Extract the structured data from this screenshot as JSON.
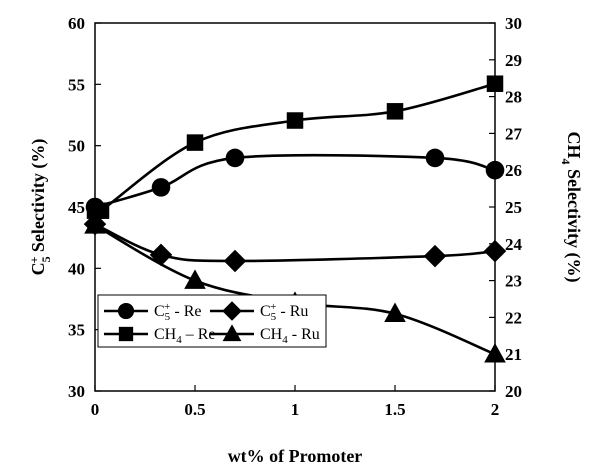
{
  "chart_data": {
    "type": "line",
    "xlabel": "wt% of Promoter",
    "ylabel_left": "C5+ Selectivity (%)",
    "ylabel_right": "CH4 Selectivity (%)",
    "xlim": [
      0,
      2
    ],
    "ylim_left": [
      30,
      60
    ],
    "ylim_right": [
      20,
      30
    ],
    "x_ticks": [
      "0",
      "0.5",
      "1",
      "1.5",
      "2"
    ],
    "y_left_ticks": [
      "30",
      "35",
      "40",
      "45",
      "50",
      "55",
      "60"
    ],
    "y_right_ticks": [
      "20",
      "21",
      "22",
      "23",
      "24",
      "25",
      "26",
      "27",
      "28",
      "29",
      "30"
    ],
    "legend_placement": "bottom-left",
    "grid": false,
    "series": [
      {
        "name": "C5+ - Re",
        "label_main": "C",
        "label_sub": "5",
        "label_sup": "+",
        "label_rest": " - Re",
        "axis": "left",
        "marker": "circle",
        "x": [
          0,
          0.33,
          0.7,
          1.7,
          2.0
        ],
        "y": [
          45.0,
          46.6,
          49.0,
          49.0,
          48.0
        ]
      },
      {
        "name": "C5+ - Ru",
        "label_main": "C",
        "label_sub": "5",
        "label_sup": "+",
        "label_rest": " - Ru",
        "axis": "left",
        "marker": "diamond",
        "x": [
          0,
          0.33,
          0.7,
          1.7,
          2.0
        ],
        "y": [
          43.6,
          41.1,
          40.6,
          41.0,
          41.4
        ]
      },
      {
        "name": "CH4 – Re",
        "label_main": "CH",
        "label_sub": "4",
        "label_sup": "",
        "label_rest": " – Re",
        "axis": "right",
        "marker": "square",
        "x": [
          0,
          0.03,
          0.5,
          1.0,
          1.5,
          2.0
        ],
        "y": [
          24.9,
          24.9,
          26.75,
          27.35,
          27.6,
          28.35
        ]
      },
      {
        "name": "CH4 - Ru",
        "label_main": "CH",
        "label_sub": "4",
        "label_sup": "",
        "label_rest": " - Ru",
        "axis": "right",
        "marker": "triangle",
        "x": [
          0,
          0.5,
          1.0,
          1.5,
          2.0
        ],
        "y": [
          24.5,
          23.0,
          22.4,
          22.1,
          21.0
        ]
      }
    ]
  }
}
